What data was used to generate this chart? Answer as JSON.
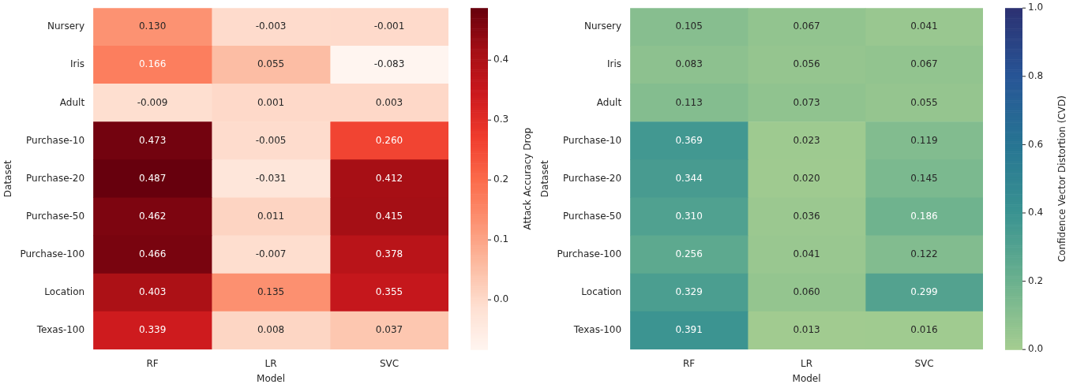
{
  "chart_data": [
    {
      "type": "heatmap",
      "xlabel": "Model",
      "ylabel": "Dataset",
      "clabel": "Attack Accuracy Drop",
      "categories": [
        "RF",
        "LR",
        "SVC"
      ],
      "y_categories": [
        "Nursery",
        "Iris",
        "Adult",
        "Purchase-10",
        "Purchase-20",
        "Purchase-50",
        "Purchase-100",
        "Location",
        "Texas-100"
      ],
      "cells": [
        [
          0.13,
          -0.003,
          -0.001
        ],
        [
          0.166,
          0.055,
          -0.083
        ],
        [
          -0.009,
          0.001,
          0.003
        ],
        [
          0.473,
          -0.005,
          0.26
        ],
        [
          0.487,
          -0.031,
          0.412
        ],
        [
          0.462,
          0.011,
          0.415
        ],
        [
          0.466,
          -0.007,
          0.378
        ],
        [
          0.403,
          0.135,
          0.355
        ],
        [
          0.339,
          0.008,
          0.037
        ]
      ],
      "cell_labels": [
        [
          "0.130",
          "-0.003",
          "-0.001"
        ],
        [
          "0.166",
          "0.055",
          "-0.083"
        ],
        [
          "-0.009",
          "0.001",
          "0.003"
        ],
        [
          "0.473",
          "-0.005",
          "0.260"
        ],
        [
          "0.487",
          "-0.031",
          "0.412"
        ],
        [
          "0.462",
          "0.011",
          "0.415"
        ],
        [
          "0.466",
          "-0.007",
          "0.378"
        ],
        [
          "0.403",
          "0.135",
          "0.355"
        ],
        [
          "0.339",
          "0.008",
          "0.037"
        ]
      ],
      "clim": [
        -0.083,
        0.487
      ],
      "cticks": [
        {
          "value": 0,
          "label": "0.0"
        },
        {
          "value": 0.1,
          "label": "0.1"
        },
        {
          "value": 0.2,
          "label": "0.2"
        },
        {
          "value": 0.3,
          "label": "0.3"
        },
        {
          "value": 0.4,
          "label": "0.4"
        }
      ],
      "data_labels": true
    },
    {
      "type": "heatmap",
      "xlabel": "Model",
      "ylabel": "Dataset",
      "clabel": "Confidence Vector Distortion (CVD)",
      "categories": [
        "RF",
        "LR",
        "SVC"
      ],
      "y_categories": [
        "Nursery",
        "Iris",
        "Adult",
        "Purchase-10",
        "Purchase-20",
        "Purchase-50",
        "Purchase-100",
        "Location",
        "Texas-100"
      ],
      "cells": [
        [
          0.105,
          0.067,
          0.041
        ],
        [
          0.083,
          0.056,
          0.067
        ],
        [
          0.113,
          0.073,
          0.055
        ],
        [
          0.369,
          0.023,
          0.119
        ],
        [
          0.344,
          0.02,
          0.145
        ],
        [
          0.31,
          0.036,
          0.186
        ],
        [
          0.256,
          0.041,
          0.122
        ],
        [
          0.329,
          0.06,
          0.299
        ],
        [
          0.391,
          0.013,
          0.016
        ]
      ],
      "cell_labels": [
        [
          "0.105",
          "0.067",
          "0.041"
        ],
        [
          "0.083",
          "0.056",
          "0.067"
        ],
        [
          "0.113",
          "0.073",
          "0.055"
        ],
        [
          "0.369",
          "0.023",
          "0.119"
        ],
        [
          "0.344",
          "0.020",
          "0.145"
        ],
        [
          "0.310",
          "0.036",
          "0.186"
        ],
        [
          "0.256",
          "0.041",
          "0.122"
        ],
        [
          "0.329",
          "0.060",
          "0.299"
        ],
        [
          "0.391",
          "0.013",
          "0.016"
        ]
      ],
      "clim": [
        0,
        1
      ],
      "cticks": [
        {
          "value": 0,
          "label": "0.0"
        },
        {
          "value": 0.2,
          "label": "0.2"
        },
        {
          "value": 0.4,
          "label": "0.4"
        },
        {
          "value": 0.6,
          "label": "0.6"
        },
        {
          "value": 0.8,
          "label": "0.8"
        },
        {
          "value": 1,
          "label": "1.0"
        }
      ],
      "data_labels": true
    }
  ]
}
